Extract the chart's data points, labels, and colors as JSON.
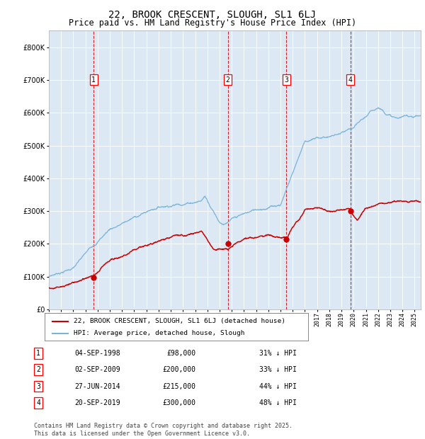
{
  "title": "22, BROOK CRESCENT, SLOUGH, SL1 6LJ",
  "subtitle": "Price paid vs. HM Land Registry's House Price Index (HPI)",
  "title_fontsize": 10,
  "subtitle_fontsize": 8.5,
  "plot_bg_color": "#dce9f5",
  "hpi_color": "#7ab3d9",
  "price_color": "#cc0000",
  "ylim": [
    0,
    850000
  ],
  "yticks": [
    0,
    100000,
    200000,
    300000,
    400000,
    500000,
    600000,
    700000,
    800000
  ],
  "legend_label_price": "22, BROOK CRESCENT, SLOUGH, SL1 6LJ (detached house)",
  "legend_label_hpi": "HPI: Average price, detached house, Slough",
  "transactions": [
    {
      "num": 1,
      "date": "04-SEP-1998",
      "year": 1998.67,
      "price": 98000,
      "pct": "31%",
      "dir": "↓"
    },
    {
      "num": 2,
      "date": "02-SEP-2009",
      "year": 2009.67,
      "price": 200000,
      "pct": "33%",
      "dir": "↓"
    },
    {
      "num": 3,
      "date": "27-JUN-2014",
      "year": 2014.49,
      "price": 215000,
      "pct": "44%",
      "dir": "↓"
    },
    {
      "num": 4,
      "date": "20-SEP-2019",
      "year": 2019.72,
      "price": 300000,
      "pct": "48%",
      "dir": "↓"
    }
  ],
  "footnote": "Contains HM Land Registry data © Crown copyright and database right 2025.\nThis data is licensed under the Open Government Licence v3.0.",
  "footnote_fontsize": 6.0,
  "xstart": 1995,
  "xend": 2025.5
}
